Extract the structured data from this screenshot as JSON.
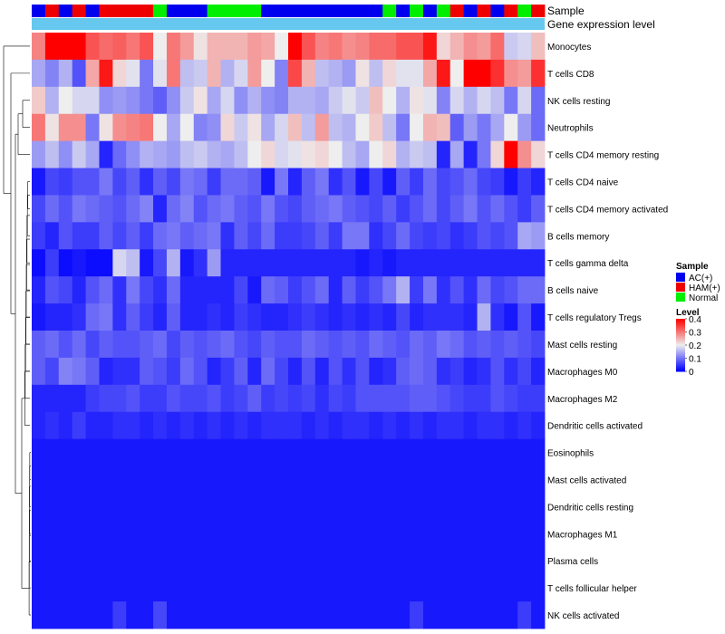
{
  "chart_data": {
    "type": "heatmap",
    "title": "",
    "annotation_tracks": [
      {
        "name": "Sample"
      },
      {
        "name": "Gene expression level"
      }
    ],
    "sample_colors": {
      "AC(+)": "#0000ee",
      "HAM(+)": "#ee0000",
      "Normal": "#00ee00"
    },
    "expression_track_color": "#66c8ee",
    "columns": 38,
    "sample_groups": [
      "AC(+)",
      "HAM(+)",
      "AC(+)",
      "HAM(+)",
      "AC(+)",
      "HAM(+)",
      "HAM(+)",
      "HAM(+)",
      "HAM(+)",
      "Normal",
      "AC(+)",
      "AC(+)",
      "AC(+)",
      "Normal",
      "Normal",
      "Normal",
      "Normal",
      "AC(+)",
      "AC(+)",
      "AC(+)",
      "AC(+)",
      "AC(+)",
      "AC(+)",
      "AC(+)",
      "AC(+)",
      "AC(+)",
      "Normal",
      "AC(+)",
      "Normal",
      "AC(+)",
      "Normal",
      "HAM(+)",
      "AC(+)",
      "HAM(+)",
      "AC(+)",
      "HAM(+)",
      "Normal",
      "HAM(+)"
    ],
    "row_labels": [
      "Monocytes",
      "T cells CD8",
      "NK cells resting",
      "Neutrophils",
      "T cells CD4 memory resting",
      "T cells CD4 naive",
      "T cells CD4 memory activated",
      "B cells memory",
      "T cells gamma delta",
      "B cells naive",
      "T cells regulatory  Tregs",
      "Mast cells resting",
      "Macrophages M0",
      "Macrophages M2",
      "Dendritic cells activated",
      "Eosinophils",
      "Mast cells activated",
      "Dendritic cells resting",
      "Macrophages M1",
      "Plasma cells",
      "T cells follicular helper",
      "NK cells activated"
    ],
    "values": [
      [
        0.29,
        0.4,
        0.4,
        0.4,
        0.33,
        0.31,
        0.32,
        0.3,
        0.33,
        0.2,
        0.3,
        0.27,
        0.21,
        0.25,
        0.25,
        0.25,
        0.27,
        0.26,
        0.2,
        0.4,
        0.33,
        0.29,
        0.3,
        0.28,
        0.29,
        0.31,
        0.31,
        0.33,
        0.33,
        0.38,
        0.22,
        0.25,
        0.28,
        0.27,
        0.31,
        0.17,
        0.18,
        0.24
      ],
      [
        0.14,
        0.11,
        0.15,
        0.07,
        0.26,
        0.38,
        0.22,
        0.19,
        0.1,
        0.19,
        0.3,
        0.16,
        0.17,
        0.25,
        0.15,
        0.18,
        0.27,
        0.2,
        0.11,
        0.34,
        0.25,
        0.16,
        0.15,
        0.13,
        0.21,
        0.16,
        0.22,
        0.19,
        0.19,
        0.26,
        0.38,
        0.2,
        0.4,
        0.4,
        0.36,
        0.28,
        0.27,
        0.36
      ],
      [
        0.23,
        0.15,
        0.2,
        0.18,
        0.18,
        0.12,
        0.13,
        0.12,
        0.1,
        0.08,
        0.12,
        0.17,
        0.21,
        0.14,
        0.18,
        0.12,
        0.15,
        0.12,
        0.11,
        0.15,
        0.15,
        0.14,
        0.17,
        0.19,
        0.17,
        0.24,
        0.2,
        0.15,
        0.21,
        0.19,
        0.11,
        0.18,
        0.15,
        0.18,
        0.16,
        0.1,
        0.18,
        0.09
      ],
      [
        0.3,
        0.21,
        0.28,
        0.28,
        0.1,
        0.21,
        0.28,
        0.29,
        0.3,
        0.2,
        0.14,
        0.2,
        0.11,
        0.12,
        0.22,
        0.17,
        0.21,
        0.14,
        0.18,
        0.24,
        0.16,
        0.27,
        0.16,
        0.15,
        0.2,
        0.23,
        0.16,
        0.1,
        0.2,
        0.25,
        0.24,
        0.08,
        0.13,
        0.1,
        0.14,
        0.2,
        0.13,
        0.09
      ],
      [
        0.13,
        0.16,
        0.12,
        0.17,
        0.14,
        0.03,
        0.09,
        0.12,
        0.15,
        0.14,
        0.13,
        0.16,
        0.17,
        0.15,
        0.14,
        0.16,
        0.2,
        0.22,
        0.18,
        0.19,
        0.21,
        0.22,
        0.2,
        0.16,
        0.14,
        0.2,
        0.22,
        0.15,
        0.17,
        0.16,
        0.03,
        0.14,
        0.03,
        0.1,
        0.22,
        0.4,
        0.28,
        0.22
      ],
      [
        0.02,
        0.06,
        0.05,
        0.07,
        0.07,
        0.1,
        0.06,
        0.08,
        0.04,
        0.08,
        0.06,
        0.1,
        0.09,
        0.05,
        0.09,
        0.09,
        0.08,
        0.02,
        0.1,
        0.03,
        0.08,
        0.1,
        0.04,
        0.07,
        0.02,
        0.06,
        0.02,
        0.08,
        0.05,
        0.09,
        0.06,
        0.07,
        0.09,
        0.06,
        0.05,
        0.02,
        0.05,
        0.03
      ],
      [
        0.06,
        0.09,
        0.07,
        0.1,
        0.09,
        0.08,
        0.07,
        0.09,
        0.11,
        0.03,
        0.09,
        0.11,
        0.07,
        0.09,
        0.1,
        0.08,
        0.07,
        0.1,
        0.07,
        0.06,
        0.08,
        0.09,
        0.1,
        0.08,
        0.07,
        0.06,
        0.08,
        0.05,
        0.07,
        0.09,
        0.06,
        0.08,
        0.1,
        0.07,
        0.09,
        0.07,
        0.05,
        0.08
      ],
      [
        0.05,
        0.03,
        0.07,
        0.05,
        0.05,
        0.08,
        0.06,
        0.08,
        0.05,
        0.09,
        0.1,
        0.08,
        0.09,
        0.1,
        0.04,
        0.08,
        0.06,
        0.09,
        0.05,
        0.05,
        0.06,
        0.08,
        0.05,
        0.1,
        0.1,
        0.04,
        0.06,
        0.09,
        0.06,
        0.05,
        0.06,
        0.04,
        0.05,
        0.07,
        0.06,
        0.07,
        0.14,
        0.13
      ],
      [
        0.01,
        0.05,
        0.01,
        0.02,
        0.01,
        0.01,
        0.18,
        0.16,
        0.02,
        0.06,
        0.15,
        0.02,
        0.04,
        0.13,
        0.03,
        0.03,
        0.03,
        0.03,
        0.03,
        0.03,
        0.03,
        0.03,
        0.03,
        0.03,
        0.02,
        0.03,
        0.02,
        0.03,
        0.03,
        0.03,
        0.03,
        0.03,
        0.03,
        0.03,
        0.03,
        0.03,
        0.03,
        0.03
      ],
      [
        0.03,
        0.07,
        0.06,
        0.03,
        0.07,
        0.09,
        0.04,
        0.1,
        0.06,
        0.04,
        0.09,
        0.03,
        0.03,
        0.03,
        0.03,
        0.06,
        0.02,
        0.09,
        0.08,
        0.05,
        0.07,
        0.09,
        0.03,
        0.08,
        0.05,
        0.07,
        0.1,
        0.15,
        0.05,
        0.1,
        0.04,
        0.07,
        0.04,
        0.09,
        0.06,
        0.07,
        0.09,
        0.09
      ],
      [
        0.02,
        0.03,
        0.03,
        0.04,
        0.09,
        0.1,
        0.04,
        0.08,
        0.05,
        0.03,
        0.08,
        0.03,
        0.03,
        0.04,
        0.03,
        0.05,
        0.04,
        0.03,
        0.03,
        0.04,
        0.05,
        0.04,
        0.03,
        0.04,
        0.03,
        0.04,
        0.03,
        0.06,
        0.03,
        0.04,
        0.04,
        0.04,
        0.03,
        0.15,
        0.04,
        0.02,
        0.07,
        0.02
      ],
      [
        0.08,
        0.09,
        0.07,
        0.09,
        0.06,
        0.08,
        0.07,
        0.07,
        0.08,
        0.09,
        0.06,
        0.08,
        0.07,
        0.08,
        0.09,
        0.07,
        0.06,
        0.08,
        0.07,
        0.07,
        0.09,
        0.08,
        0.07,
        0.08,
        0.07,
        0.09,
        0.08,
        0.07,
        0.09,
        0.08,
        0.1,
        0.09,
        0.07,
        0.08,
        0.07,
        0.08,
        0.07,
        0.06
      ],
      [
        0.08,
        0.06,
        0.11,
        0.1,
        0.08,
        0.03,
        0.04,
        0.04,
        0.08,
        0.07,
        0.05,
        0.09,
        0.07,
        0.03,
        0.05,
        0.08,
        0.03,
        0.09,
        0.06,
        0.03,
        0.07,
        0.03,
        0.07,
        0.04,
        0.07,
        0.03,
        0.04,
        0.08,
        0.09,
        0.08,
        0.04,
        0.05,
        0.03,
        0.04,
        0.07,
        0.04,
        0.06,
        0.03
      ],
      [
        0.03,
        0.03,
        0.03,
        0.03,
        0.05,
        0.06,
        0.06,
        0.07,
        0.05,
        0.05,
        0.07,
        0.06,
        0.06,
        0.07,
        0.05,
        0.06,
        0.08,
        0.05,
        0.06,
        0.05,
        0.06,
        0.04,
        0.06,
        0.05,
        0.07,
        0.07,
        0.07,
        0.07,
        0.08,
        0.08,
        0.07,
        0.06,
        0.05,
        0.05,
        0.07,
        0.06,
        0.05,
        0.05
      ],
      [
        0.03,
        0.04,
        0.03,
        0.05,
        0.03,
        0.03,
        0.04,
        0.04,
        0.03,
        0.04,
        0.03,
        0.04,
        0.03,
        0.04,
        0.03,
        0.04,
        0.03,
        0.04,
        0.04,
        0.04,
        0.03,
        0.04,
        0.03,
        0.04,
        0.04,
        0.03,
        0.04,
        0.03,
        0.04,
        0.03,
        0.04,
        0.04,
        0.03,
        0.04,
        0.04,
        0.03,
        0.04,
        0.03
      ],
      [
        0.02,
        0.02,
        0.02,
        0.02,
        0.02,
        0.02,
        0.02,
        0.02,
        0.02,
        0.02,
        0.02,
        0.02,
        0.02,
        0.02,
        0.02,
        0.02,
        0.02,
        0.02,
        0.02,
        0.02,
        0.02,
        0.02,
        0.02,
        0.02,
        0.02,
        0.02,
        0.02,
        0.02,
        0.02,
        0.02,
        0.02,
        0.02,
        0.02,
        0.02,
        0.02,
        0.02,
        0.02,
        0.02
      ],
      [
        0.02,
        0.02,
        0.02,
        0.02,
        0.02,
        0.02,
        0.02,
        0.02,
        0.02,
        0.02,
        0.02,
        0.02,
        0.02,
        0.02,
        0.02,
        0.02,
        0.02,
        0.02,
        0.02,
        0.02,
        0.02,
        0.02,
        0.02,
        0.02,
        0.02,
        0.02,
        0.02,
        0.02,
        0.02,
        0.02,
        0.02,
        0.02,
        0.02,
        0.02,
        0.02,
        0.02,
        0.02,
        0.02
      ],
      [
        0.02,
        0.02,
        0.02,
        0.02,
        0.02,
        0.02,
        0.02,
        0.02,
        0.02,
        0.02,
        0.02,
        0.02,
        0.02,
        0.02,
        0.02,
        0.02,
        0.02,
        0.02,
        0.02,
        0.02,
        0.02,
        0.02,
        0.02,
        0.02,
        0.02,
        0.02,
        0.02,
        0.02,
        0.02,
        0.02,
        0.02,
        0.02,
        0.02,
        0.02,
        0.02,
        0.02,
        0.02,
        0.02
      ],
      [
        0.02,
        0.02,
        0.02,
        0.02,
        0.02,
        0.02,
        0.02,
        0.02,
        0.02,
        0.02,
        0.02,
        0.02,
        0.02,
        0.02,
        0.02,
        0.02,
        0.02,
        0.02,
        0.02,
        0.02,
        0.02,
        0.02,
        0.02,
        0.02,
        0.02,
        0.02,
        0.02,
        0.02,
        0.02,
        0.02,
        0.02,
        0.02,
        0.02,
        0.02,
        0.02,
        0.02,
        0.02,
        0.02
      ],
      [
        0.02,
        0.02,
        0.02,
        0.02,
        0.02,
        0.02,
        0.02,
        0.02,
        0.02,
        0.02,
        0.02,
        0.02,
        0.02,
        0.02,
        0.02,
        0.02,
        0.02,
        0.02,
        0.02,
        0.02,
        0.02,
        0.02,
        0.02,
        0.02,
        0.02,
        0.02,
        0.02,
        0.02,
        0.02,
        0.02,
        0.02,
        0.02,
        0.02,
        0.02,
        0.02,
        0.02,
        0.02,
        0.02
      ],
      [
        0.02,
        0.02,
        0.02,
        0.02,
        0.02,
        0.02,
        0.02,
        0.02,
        0.02,
        0.02,
        0.02,
        0.02,
        0.02,
        0.02,
        0.02,
        0.02,
        0.02,
        0.02,
        0.02,
        0.02,
        0.02,
        0.02,
        0.02,
        0.02,
        0.02,
        0.02,
        0.02,
        0.02,
        0.02,
        0.02,
        0.02,
        0.02,
        0.02,
        0.02,
        0.02,
        0.02,
        0.02,
        0.02
      ],
      [
        0.02,
        0.02,
        0.02,
        0.02,
        0.02,
        0.02,
        0.05,
        0.02,
        0.02,
        0.06,
        0.02,
        0.02,
        0.02,
        0.02,
        0.02,
        0.02,
        0.02,
        0.02,
        0.02,
        0.02,
        0.02,
        0.02,
        0.02,
        0.02,
        0.02,
        0.02,
        0.02,
        0.02,
        0.05,
        0.02,
        0.02,
        0.02,
        0.02,
        0.02,
        0.02,
        0.02,
        0.05,
        0.02
      ]
    ],
    "color_scale": {
      "min": 0,
      "max": 0.4,
      "low": "#0000ff",
      "mid": "#eeeeee",
      "high": "#ff0000",
      "mid_value": 0.2
    },
    "legend": {
      "sample_title": "Sample",
      "sample_entries": [
        {
          "label": "AC(+)",
          "color": "#0000ee"
        },
        {
          "label": "HAM(+)",
          "color": "#ee0000"
        },
        {
          "label": "Normal",
          "color": "#00ee00"
        }
      ],
      "level_title": "Level",
      "level_ticks": [
        "0.4",
        "0.3",
        "0.2",
        "0.1",
        "0"
      ],
      "position": "right"
    },
    "dendrogram": "rows"
  }
}
